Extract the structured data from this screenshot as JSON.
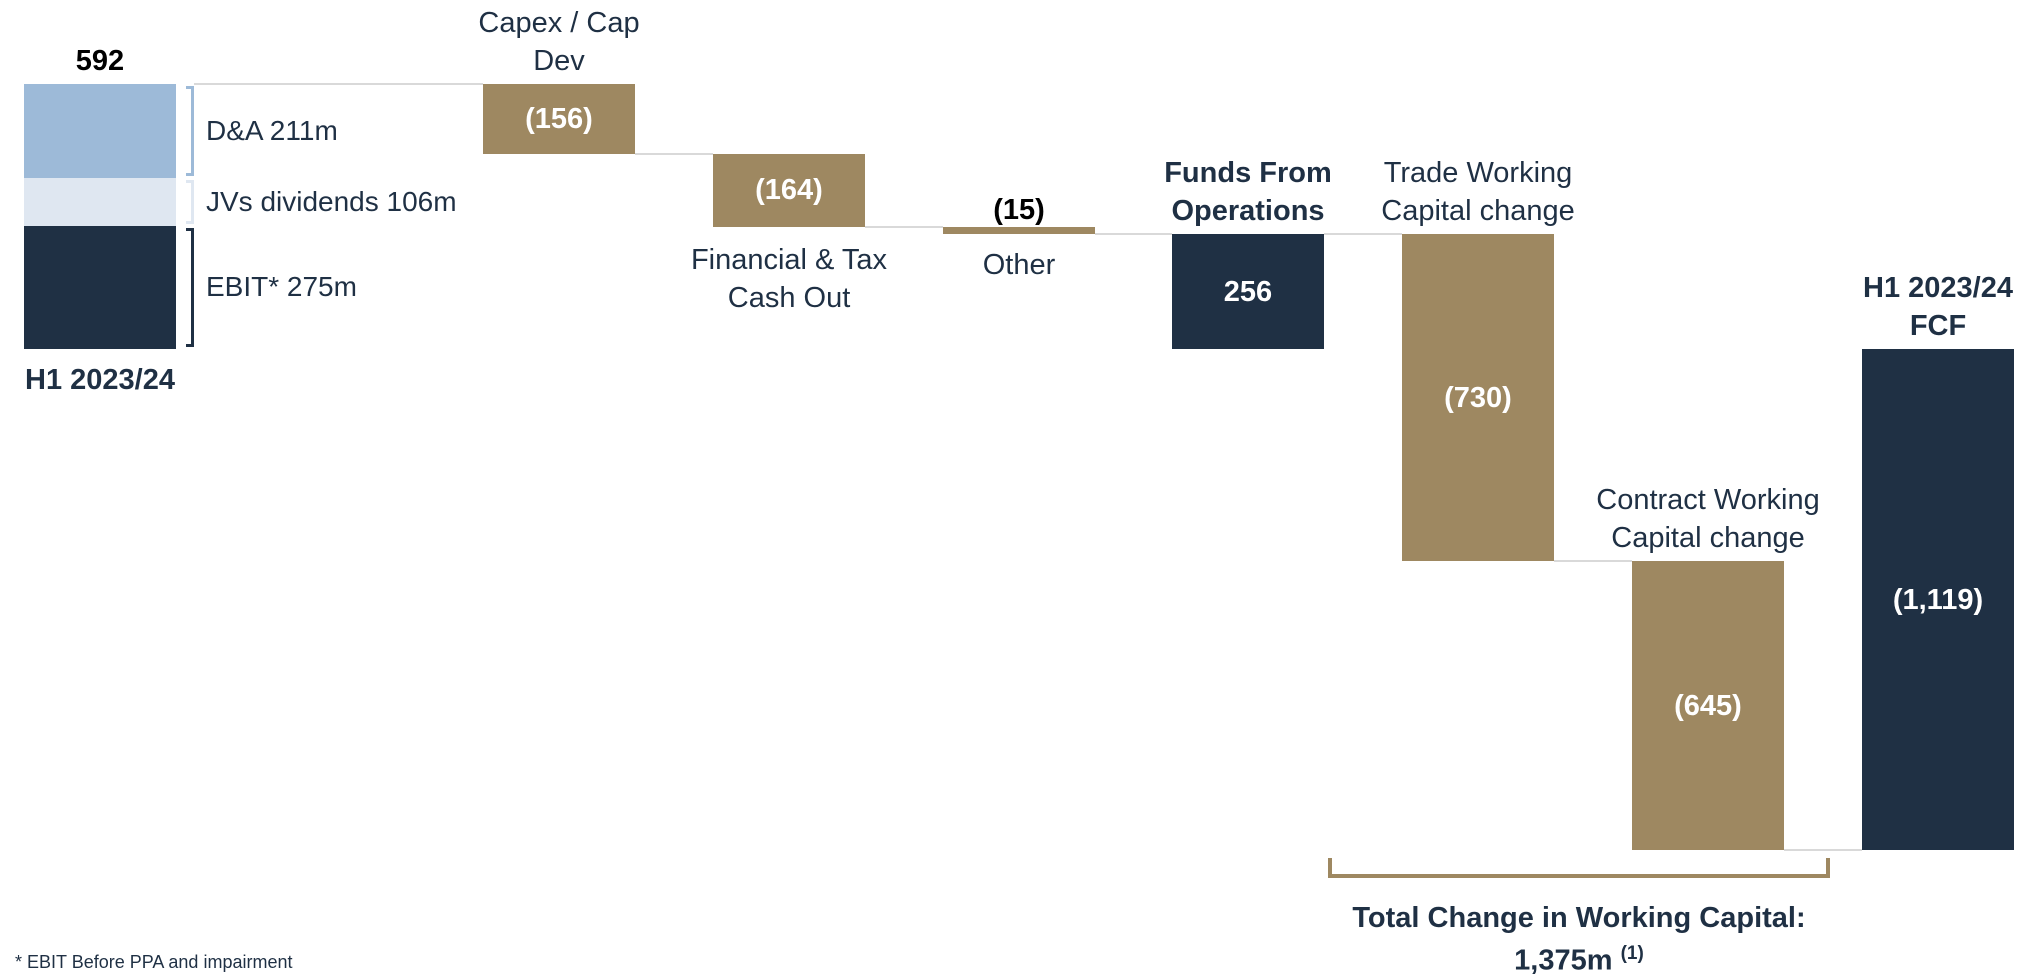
{
  "chart_data": {
    "type": "waterfall",
    "categories": [
      "H1 2023/24",
      "Capex / Cap Dev",
      "Financial & Tax Cash Out",
      "Other",
      "Funds From Operations",
      "Trade Working Capital change",
      "Contract Working Capital change",
      "H1 2023/24 FCF"
    ],
    "values": [
      592,
      -156,
      -164,
      -15,
      256,
      -730,
      -645,
      -1119
    ],
    "value_labels": [
      "592",
      "(156)",
      "(164)",
      "(15)",
      "256",
      "(730)",
      "(645)",
      "(1,119)"
    ],
    "measure": [
      "total",
      "relative",
      "relative",
      "relative",
      "total",
      "relative",
      "relative",
      "total"
    ],
    "colors": [
      "#1f3044",
      "#9e8861",
      "#9e8861",
      "#9e8861",
      "#1f3044",
      "#9e8861",
      "#9e8861",
      "#1f3044"
    ],
    "segments": [
      {
        "name": "D&A 211m",
        "value": 211,
        "color": "#9dbad8"
      },
      {
        "name": "JVs dividends 106m",
        "value": 106,
        "color": "#dfe7f1"
      },
      {
        "name": "EBIT* 275m",
        "value": 275,
        "color": "#1f3044"
      }
    ],
    "annotation": {
      "text": "Total Change in Working Capital: 1,375m",
      "ref": "(1)"
    },
    "footnote": "* EBIT Before PPA and impairment"
  }
}
